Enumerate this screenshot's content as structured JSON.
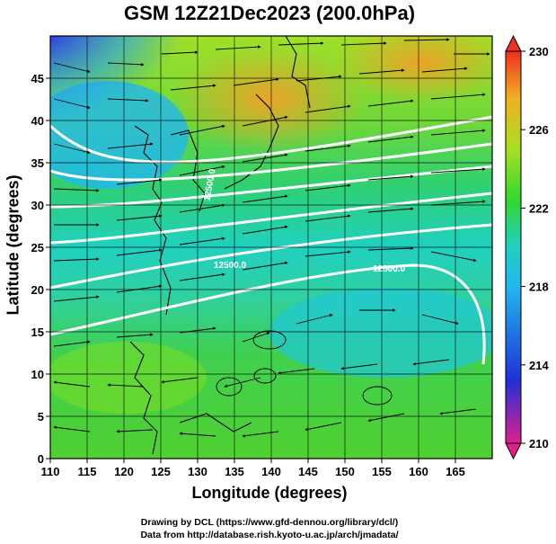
{
  "title": "GSM 12Z21Dec2023 (200.0hPa)",
  "xlabel": "Longitude (degrees)",
  "ylabel": "Latitude  (degrees)",
  "credits": [
    "Drawing by DCL (https://www.gfd-dennou.org/library/dcl/)",
    "Data from http://database.rish.kyoto-u.ac.jp/arch/jmadata/"
  ],
  "chart_data": {
    "type": "heatmap",
    "xlim": [
      110,
      170
    ],
    "ylim": [
      0,
      50
    ],
    "x_ticks": [
      110,
      115,
      120,
      125,
      130,
      135,
      140,
      145,
      150,
      155,
      160,
      165
    ],
    "y_ticks": [
      0,
      5,
      10,
      15,
      20,
      25,
      30,
      35,
      40,
      45
    ],
    "colorbar": {
      "range": [
        210,
        230
      ],
      "tick_labels": [
        230,
        226,
        222,
        218,
        214,
        210
      ],
      "colors": [
        "#e0208c",
        "#2030d8",
        "#20b8f0",
        "#20d0c0",
        "#30d830",
        "#a8e020",
        "#f0b020",
        "#f03020"
      ]
    },
    "contour_labels": [
      "12500.0",
      "12500.0",
      "12500.0"
    ],
    "grid": true
  }
}
